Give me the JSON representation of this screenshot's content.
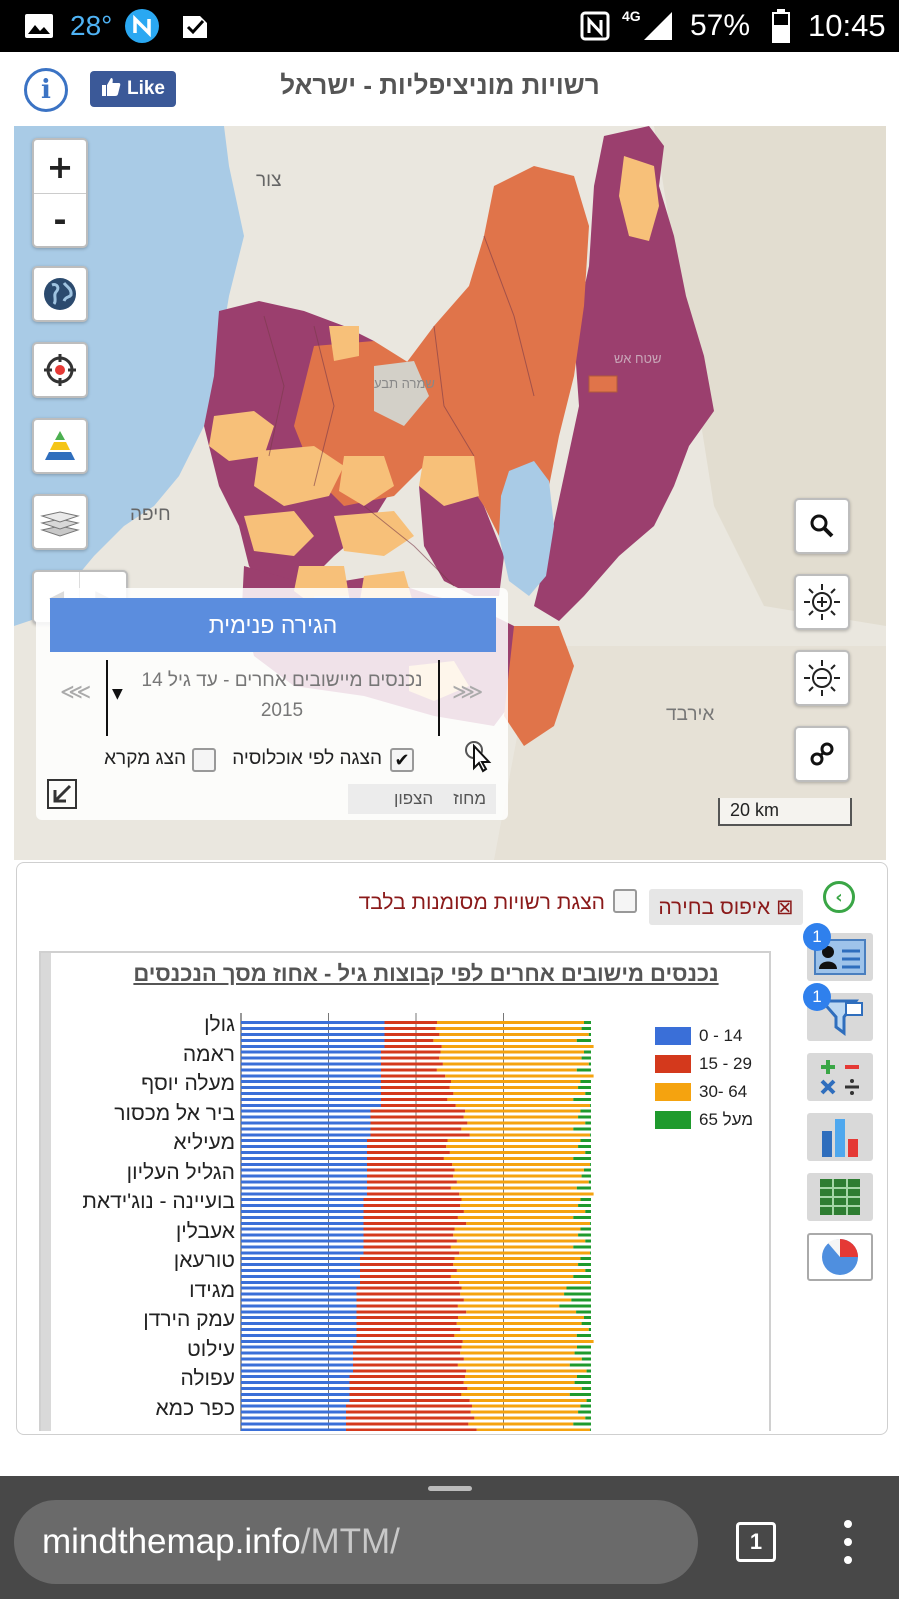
{
  "status_bar": {
    "temperature": "28°",
    "network": "4G",
    "battery": "57%",
    "time": "10:45",
    "icons": [
      "image-icon",
      "n-app-icon",
      "check-badge-icon",
      "nfc-icon",
      "signal-icon",
      "battery-icon"
    ]
  },
  "header": {
    "title": "רשויות מוניציפליות - ישראל",
    "like_label": "Like",
    "info_icon": "info-icon"
  },
  "map": {
    "zoom_in": "+",
    "zoom_out": "-",
    "place_labels": {
      "tyre": "צור",
      "haifa": "חיפה",
      "irbid": "אירבד",
      "ein": "שמרה תבע",
      "mountain": "שטח אש"
    },
    "scale": "20 km",
    "overlay": {
      "header": "הגירה פנימית",
      "selector_text": "נכנסים מיישובים אחרים - עד גיל 14 2015",
      "prev_symbol": "⋘",
      "next_symbol": "⋙",
      "population_label": "הצגה לפי אוכלוסיה",
      "population_checked": true,
      "legend_label": "הצג מקרא",
      "legend_checked": false,
      "district_label": "מחוז",
      "district_value": "הצפון"
    },
    "colors": {
      "water": "#a9cbe6",
      "land": "#eae7df",
      "dark": "#9b3f6e",
      "mid": "#e0744a",
      "light": "#f7c079",
      "panel_header": "#5b8dde"
    }
  },
  "panel": {
    "show_marked_label": "הצגת רשויות מסומנות בלבד",
    "reset_label": "⊠ איפוס בחירה",
    "badge_1": "1",
    "badge_2": "1"
  },
  "chart_data": {
    "type": "bar",
    "orientation": "horizontal",
    "stacked": true,
    "percent": true,
    "title": "נכנסים מישובים אחרים לפי קבוצות גיל - אחוז מסך הנכנסים",
    "xlim": [
      0,
      100
    ],
    "label_rows": [
      "גולן",
      "ראמה",
      "מעלה יוסף",
      "ביר אל מכסור",
      "מעיליא",
      "הגליל העליון",
      "בועיינה - נוג'ידאת",
      "אעבלין",
      "טורעאן",
      "מגידו",
      "עמק הירדן",
      "עילוט",
      "עפולה",
      "כפר כמא"
    ],
    "series_names": [
      "0 - 14",
      "15 - 29",
      "30- 64",
      "65 מעל"
    ],
    "series_colors": [
      "#3a6fd8",
      "#d4391c",
      "#f5a30f",
      "#1f9a2d"
    ],
    "bars": [
      [
        41,
        15,
        42,
        2
      ],
      [
        40,
        17,
        41,
        2
      ],
      [
        40,
        20,
        37,
        3
      ],
      [
        37,
        27,
        33,
        3
      ],
      [
        36,
        23,
        38,
        3
      ],
      [
        36,
        25,
        37,
        2
      ],
      [
        35,
        28,
        34,
        3
      ],
      [
        35,
        26,
        36,
        3
      ],
      [
        34,
        27,
        36,
        3
      ],
      [
        33,
        30,
        30,
        7
      ],
      [
        33,
        29,
        36,
        2
      ],
      [
        32,
        31,
        33,
        4
      ],
      [
        31,
        33,
        32,
        4
      ],
      [
        30,
        36,
        31,
        3
      ]
    ]
  },
  "browser": {
    "url_host": "mindthemap.info",
    "url_path": "/MTM/",
    "tab_count": "1"
  }
}
